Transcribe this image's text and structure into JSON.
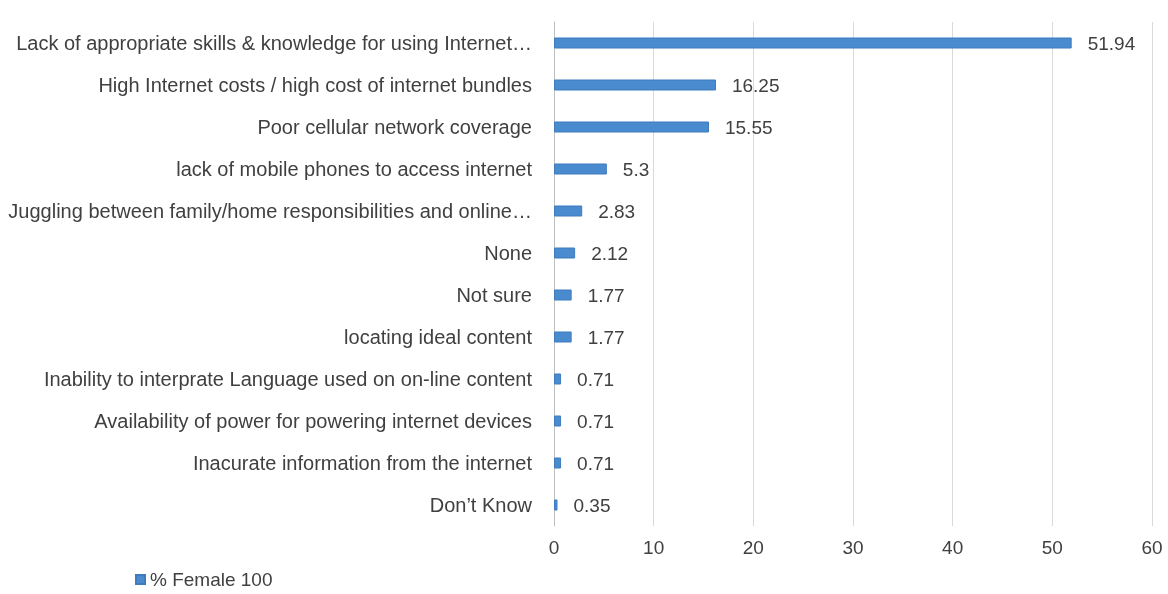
{
  "chart_data": {
    "type": "bar",
    "orientation": "horizontal",
    "categories": [
      "Lack of appropriate skills & knowledge for using Internet…",
      "High Internet costs / high cost of internet bundles",
      "Poor cellular network coverage",
      "lack of mobile phones to access internet",
      "Juggling between family/home responsibilities and online…",
      "None",
      "Not sure",
      "locating ideal content",
      "Inability to interprate Language used on on-line content",
      "Availability of power for powering internet devices",
      "Inacurate information from the internet",
      "Don’t Know"
    ],
    "series": [
      {
        "name": "% Female 100",
        "color": "#4a8bd0",
        "values": [
          51.94,
          16.25,
          15.55,
          5.3,
          2.83,
          2.12,
          1.77,
          1.77,
          0.71,
          0.71,
          0.71,
          0.35
        ]
      }
    ],
    "xlim": [
      0,
      60
    ],
    "xticks": [
      0,
      10,
      20,
      30,
      40,
      50,
      60
    ],
    "grid": "x",
    "legend": "bottom left",
    "data_labels": true
  }
}
